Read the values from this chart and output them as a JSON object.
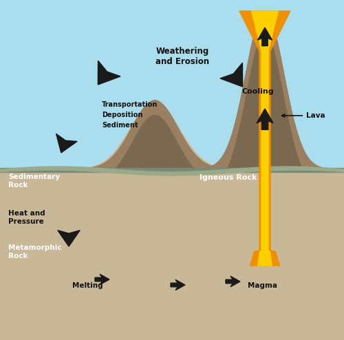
{
  "fig_w": 5.0,
  "fig_h": 4.94,
  "dpi": 100,
  "colors": {
    "sky": "#aadded",
    "horizon_gray": "#8a9e8a",
    "mtn_dark": "#7a6850",
    "mtn_mid": "#9a8060",
    "mtn_light": "#b0987a",
    "ground_tan": "#c8b898",
    "layer_sand": "#d4c4a0",
    "layer_orange_tan": "#d4a870",
    "layer_lavender": "#c0b0d0",
    "layer_purple": "#a898c0",
    "layer_deep_purple": "#9080a8",
    "layer_beige": "#b8a888",
    "layer_pale": "#ccc0a0",
    "magma_orange": "#f07800",
    "magma_bright": "#ffaa00",
    "magma_red": "#c83000",
    "magma_dark_red": "#a02000",
    "lava_yellow": "#ffd000",
    "lava_orange": "#f09000",
    "arrow_dark": "#1a1a1a",
    "text_dark": "#111111",
    "text_white": "#ffffff"
  },
  "labels": {
    "weathering": "Weathering\nand Erosion",
    "transportation": "Transportation",
    "deposition": "Deposition",
    "sediment": "Sediment",
    "sedimentary": "Sedimentary\nRock",
    "heat_pressure": "Heat and\nPressure",
    "metamorphic": "Metamorphic\nRock",
    "igneous": "Igneous Rock",
    "cooling": "Cooling",
    "lava": "Lava",
    "melting": "Melting",
    "magma": "Magma"
  }
}
